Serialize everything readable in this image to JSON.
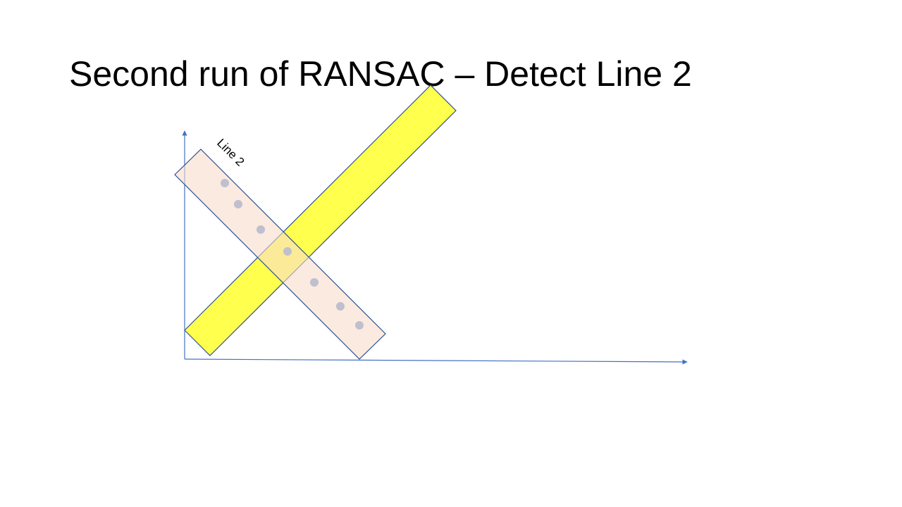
{
  "slide": {
    "title": "Second run of RANSAC – Detect Line 2"
  },
  "diagram": {
    "axis_color": "#4472C4",
    "band_outline_color": "#2F528F",
    "yellow_band": {
      "fill": "#FFFF4D"
    },
    "line2_band": {
      "label": "Line 2",
      "fill": "#F8DCCB"
    },
    "points": {
      "color": "#BFBFCF",
      "count": 7
    }
  }
}
